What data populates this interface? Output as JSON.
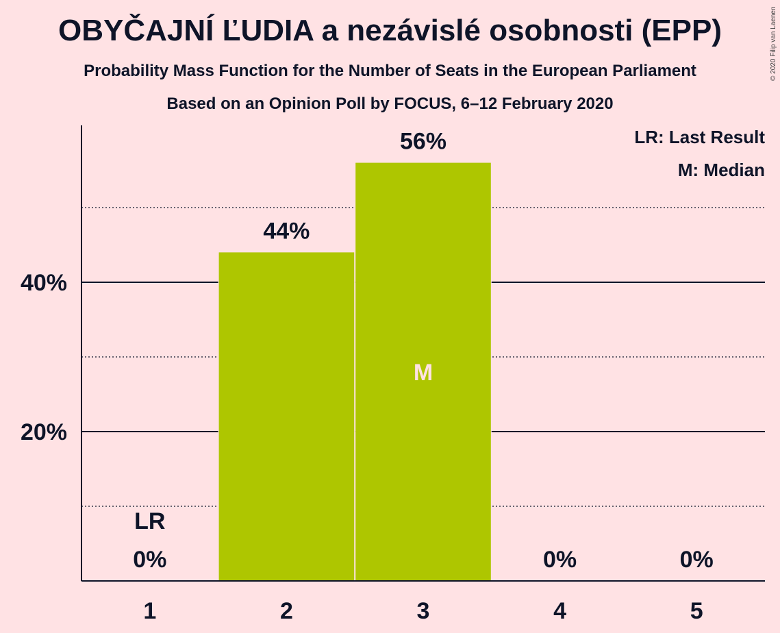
{
  "title": "OBYČAJNÍ ĽUDIA a nezávislé osobnosti (EPP)",
  "subtitle": "Probability Mass Function for the Number of Seats in the European Parliament",
  "subtitle2": "Based on an Opinion Poll by FOCUS, 6–12 February 2020",
  "copyright": "© 2020 Filip van Laenen",
  "legend": {
    "lr": "LR: Last Result",
    "m": "M: Median"
  },
  "colors": {
    "bar": "#AEC600",
    "background": "#FFE2E4",
    "text": "#0E1428"
  },
  "chart_data": {
    "type": "bar",
    "categories": [
      "1",
      "2",
      "3",
      "4",
      "5"
    ],
    "values": [
      0,
      44,
      56,
      0,
      0
    ],
    "value_labels": [
      "0%",
      "44%",
      "56%",
      "0%",
      "0%"
    ],
    "ylim": [
      0,
      61
    ],
    "y_major_ticks": [
      20,
      40
    ],
    "y_major_tick_labels": [
      "20%",
      "40%"
    ],
    "y_minor_ticks": [
      10,
      30,
      50
    ],
    "last_result": {
      "category": "1",
      "label": "LR"
    },
    "median": {
      "category": "3",
      "label": "M"
    },
    "legend_position": "top-right"
  }
}
